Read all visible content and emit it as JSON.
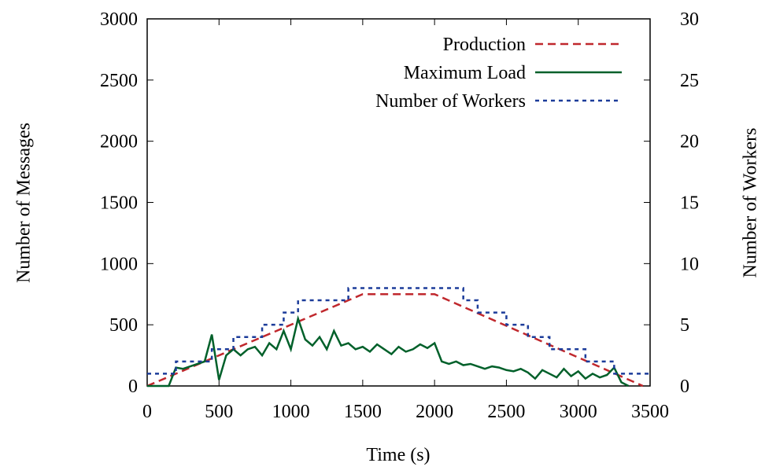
{
  "chart_data": {
    "type": "line",
    "xlabel": "Time (s)",
    "ylabel": "Number of Messages",
    "y2label": "Number of Workers",
    "xlim": [
      0,
      3500
    ],
    "xticks": [
      0,
      500,
      1000,
      1500,
      2000,
      2500,
      3000,
      3500
    ],
    "ylim": [
      0,
      3000
    ],
    "yticks": [
      0,
      500,
      1000,
      1500,
      2000,
      2500,
      3000
    ],
    "y2lim": [
      0,
      30
    ],
    "y2ticks": [
      0,
      5,
      10,
      15,
      20,
      25,
      30
    ],
    "legend": "top-right",
    "series": [
      {
        "name": "Production",
        "color": "#c0282d",
        "dash": "dashed",
        "x": [
          0,
          1500,
          2000,
          3450
        ],
        "values": [
          0,
          750,
          750,
          0
        ]
      },
      {
        "name": "Maximum Load",
        "color": "#00602a",
        "dash": "solid",
        "x": [
          0,
          50,
          100,
          150,
          200,
          250,
          300,
          350,
          400,
          450,
          500,
          550,
          600,
          650,
          700,
          750,
          800,
          850,
          900,
          950,
          1000,
          1050,
          1100,
          1150,
          1200,
          1250,
          1300,
          1350,
          1400,
          1450,
          1500,
          1550,
          1600,
          1650,
          1700,
          1750,
          1800,
          1850,
          1900,
          1950,
          2000,
          2050,
          2100,
          2150,
          2200,
          2250,
          2300,
          2350,
          2400,
          2450,
          2500,
          2550,
          2600,
          2650,
          2700,
          2750,
          2800,
          2850,
          2900,
          2950,
          3000,
          3050,
          3100,
          3150,
          3200,
          3250,
          3300,
          3350
        ],
        "values": [
          0,
          0,
          0,
          0,
          150,
          140,
          160,
          180,
          200,
          420,
          50,
          250,
          300,
          250,
          300,
          320,
          250,
          350,
          300,
          450,
          300,
          550,
          380,
          330,
          400,
          300,
          450,
          330,
          350,
          300,
          320,
          280,
          340,
          300,
          260,
          320,
          280,
          300,
          340,
          310,
          350,
          200,
          180,
          200,
          170,
          180,
          160,
          140,
          160,
          150,
          130,
          120,
          140,
          110,
          60,
          130,
          100,
          70,
          140,
          80,
          120,
          60,
          100,
          70,
          90,
          150,
          30,
          0
        ]
      },
      {
        "name": "Number of Workers",
        "color": "#1c3c9a",
        "dash": "dotted",
        "axis": "y2",
        "step": true,
        "x": [
          0,
          200,
          450,
          600,
          800,
          950,
          1050,
          1400,
          2200,
          2300,
          2500,
          2650,
          2800,
          3050,
          3250,
          3500
        ],
        "values": [
          1,
          2,
          3,
          4,
          5,
          6,
          7,
          8,
          7,
          6,
          5,
          4,
          3,
          2,
          1,
          1
        ]
      }
    ]
  }
}
